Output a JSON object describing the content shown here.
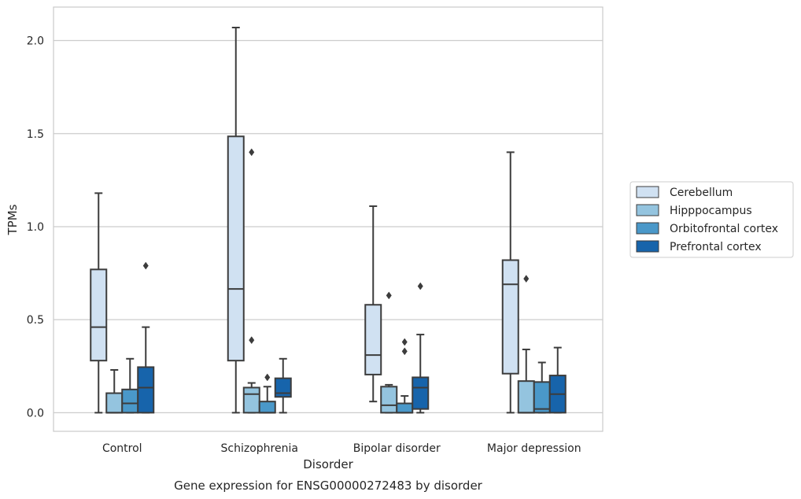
{
  "chart_data": {
    "type": "box",
    "caption": "Gene expression for ENSG00000272483 by disorder",
    "xlabel": "Disorder",
    "ylabel": "TPMs",
    "ylim": [
      -0.1,
      2.18
    ],
    "yticks": [
      "0.0",
      "0.5",
      "1.0",
      "1.5",
      "2.0"
    ],
    "ytick_values": [
      0.0,
      0.5,
      1.0,
      1.5,
      2.0
    ],
    "grid": true,
    "legend_position": "right",
    "categories": [
      "Control",
      "Schizophrenia",
      "Bipolar disorder",
      "Major depression"
    ],
    "series": [
      {
        "name": "Cerebellum",
        "color": "#d0e1f2",
        "boxes": [
          {
            "min": 0.0,
            "q1": 0.28,
            "median": 0.46,
            "q3": 0.77,
            "max": 1.18,
            "outliers": []
          },
          {
            "min": 0.0,
            "q1": 0.28,
            "median": 0.665,
            "q3": 1.485,
            "max": 2.07,
            "outliers": []
          },
          {
            "min": 0.06,
            "q1": 0.205,
            "median": 0.31,
            "q3": 0.58,
            "max": 1.11,
            "outliers": []
          },
          {
            "min": 0.0,
            "q1": 0.21,
            "median": 0.69,
            "q3": 0.82,
            "max": 1.4,
            "outliers": []
          }
        ]
      },
      {
        "name": "Hipppocampus",
        "color": "#94c4df",
        "boxes": [
          {
            "min": 0.0,
            "q1": 0.0,
            "median": 0.0,
            "q3": 0.105,
            "max": 0.23,
            "outliers": []
          },
          {
            "min": 0.0,
            "q1": 0.0,
            "median": 0.1,
            "q3": 0.135,
            "max": 0.16,
            "outliers": [
              1.4,
              0.39
            ]
          },
          {
            "min": 0.0,
            "q1": 0.0,
            "median": 0.04,
            "q3": 0.14,
            "max": 0.15,
            "outliers": [
              0.63
            ]
          },
          {
            "min": 0.0,
            "q1": 0.0,
            "median": 0.0,
            "q3": 0.17,
            "max": 0.34,
            "outliers": [
              0.72
            ]
          }
        ]
      },
      {
        "name": "Orbitofrontal cortex",
        "color": "#4a98c9",
        "boxes": [
          {
            "min": 0.0,
            "q1": 0.0,
            "median": 0.05,
            "q3": 0.125,
            "max": 0.29,
            "outliers": []
          },
          {
            "min": 0.0,
            "q1": 0.0,
            "median": 0.0,
            "q3": 0.06,
            "max": 0.14,
            "outliers": [
              0.19
            ]
          },
          {
            "min": 0.0,
            "q1": 0.0,
            "median": 0.0,
            "q3": 0.05,
            "max": 0.09,
            "outliers": [
              0.38,
              0.33
            ]
          },
          {
            "min": 0.0,
            "q1": 0.0,
            "median": 0.02,
            "q3": 0.165,
            "max": 0.27,
            "outliers": []
          }
        ]
      },
      {
        "name": "Prefrontal cortex",
        "color": "#1764ab",
        "boxes": [
          {
            "min": 0.0,
            "q1": 0.0,
            "median": 0.135,
            "q3": 0.245,
            "max": 0.46,
            "outliers": [
              0.79
            ]
          },
          {
            "min": 0.0,
            "q1": 0.085,
            "median": 0.105,
            "q3": 0.185,
            "max": 0.29,
            "outliers": []
          },
          {
            "min": 0.0,
            "q1": 0.02,
            "median": 0.135,
            "q3": 0.19,
            "max": 0.42,
            "outliers": [
              0.68
            ]
          },
          {
            "min": 0.0,
            "q1": 0.0,
            "median": 0.1,
            "q3": 0.2,
            "max": 0.35,
            "outliers": []
          }
        ]
      }
    ]
  }
}
